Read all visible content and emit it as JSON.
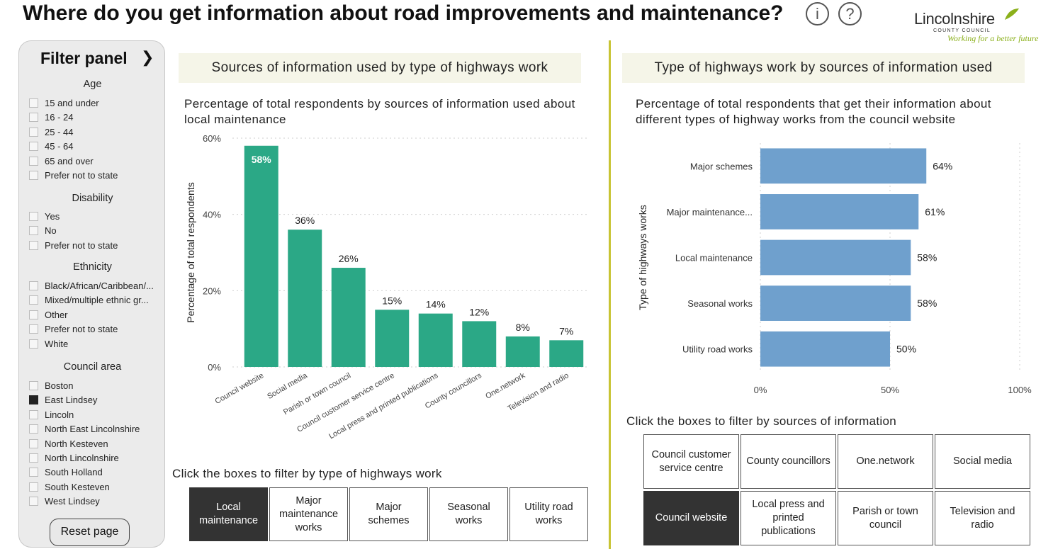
{
  "header": {
    "title": "Where do you get information about road improvements and maintenance?",
    "info_glyph": "i",
    "help_glyph": "?",
    "logo_name": "Lincolnshire",
    "logo_sub": "COUNTY COUNCIL",
    "logo_tagline": "Working for a better future"
  },
  "filter_panel": {
    "title": "Filter panel",
    "chevron": "❯",
    "groups": [
      {
        "heading": "Age",
        "options": [
          {
            "label": "15 and under",
            "checked": false
          },
          {
            "label": "16 - 24",
            "checked": false
          },
          {
            "label": "25 - 44",
            "checked": false
          },
          {
            "label": "45 - 64",
            "checked": false
          },
          {
            "label": "65 and over",
            "checked": false
          },
          {
            "label": "Prefer not to state",
            "checked": false
          }
        ]
      },
      {
        "heading": "Disability",
        "options": [
          {
            "label": "Yes",
            "checked": false
          },
          {
            "label": "No",
            "checked": false
          },
          {
            "label": "Prefer not to state",
            "checked": false
          }
        ]
      },
      {
        "heading": "Ethnicity",
        "options": [
          {
            "label": "Black/African/Caribbean/...",
            "checked": false
          },
          {
            "label": "Mixed/multiple ethnic gr...",
            "checked": false
          },
          {
            "label": "Other",
            "checked": false
          },
          {
            "label": "Prefer not to state",
            "checked": false
          },
          {
            "label": "White",
            "checked": false
          }
        ]
      },
      {
        "heading": "Council area",
        "options": [
          {
            "label": "Boston",
            "checked": false
          },
          {
            "label": "East Lindsey",
            "checked": true
          },
          {
            "label": "Lincoln",
            "checked": false
          },
          {
            "label": "North East Lincolnshire",
            "checked": false
          },
          {
            "label": "North Kesteven",
            "checked": false
          },
          {
            "label": "North Lincolnshire",
            "checked": false
          },
          {
            "label": "South Holland",
            "checked": false
          },
          {
            "label": "South Kesteven",
            "checked": false
          },
          {
            "label": "West Lindsey",
            "checked": false
          }
        ]
      }
    ],
    "reset_label": "Reset page"
  },
  "left_section": {
    "banner": "Sources of information used by type of highways work",
    "filter_caption": "Click the boxes to filter by type of highways work",
    "tiles": [
      {
        "label": "Local maintenance",
        "selected": true
      },
      {
        "label": "Major maintenance works",
        "selected": false
      },
      {
        "label": "Major schemes",
        "selected": false
      },
      {
        "label": "Seasonal works",
        "selected": false
      },
      {
        "label": "Utility road works",
        "selected": false
      }
    ]
  },
  "right_section": {
    "banner": "Type of highways work by sources of information used",
    "filter_caption": "Click the boxes to filter by sources of information",
    "tiles": [
      {
        "label": "Council customer service centre",
        "selected": false
      },
      {
        "label": "County councillors",
        "selected": false
      },
      {
        "label": "One.network",
        "selected": false
      },
      {
        "label": "Social media",
        "selected": false
      },
      {
        "label": "Council website",
        "selected": true
      },
      {
        "label": "Local press and printed publications",
        "selected": false
      },
      {
        "label": "Parish or town council",
        "selected": false
      },
      {
        "label": "Television and radio",
        "selected": false
      }
    ]
  },
  "chart_data": [
    {
      "type": "bar",
      "orientation": "vertical",
      "title": "Percentage of total respondents by sources of information used about local maintenance",
      "categories": [
        "Council website",
        "Social media",
        "Parish or town council",
        "Council customer service centre",
        "Local press and printed publications",
        "County councillors",
        "One.network",
        "Television and radio"
      ],
      "values": [
        58,
        36,
        26,
        15,
        14,
        12,
        8,
        7
      ],
      "data_labels": [
        "58%",
        "36%",
        "26%",
        "15%",
        "14%",
        "12%",
        "8%",
        "7%"
      ],
      "ylabel": "Percentage of total respondents",
      "xlabel": "",
      "ylim": [
        0,
        60
      ],
      "yticks": [
        0,
        20,
        40,
        60
      ],
      "ytick_labels": [
        "0%",
        "20%",
        "40%",
        "60%"
      ],
      "grid": true,
      "color": "#2ba886"
    },
    {
      "type": "bar",
      "orientation": "horizontal",
      "title": "Percentage of total respondents that get their information about different types of highway works from the council website",
      "categories": [
        "Major schemes",
        "Major maintenance...",
        "Local maintenance",
        "Seasonal works",
        "Utility road works"
      ],
      "values": [
        64,
        61,
        58,
        58,
        50
      ],
      "data_labels": [
        "64%",
        "61%",
        "58%",
        "58%",
        "50%"
      ],
      "ylabel": "Type of highways works",
      "xlabel": "",
      "xlim": [
        0,
        100
      ],
      "xticks": [
        0,
        50,
        100
      ],
      "xtick_labels": [
        "0%",
        "50%",
        "100%"
      ],
      "grid": true,
      "color": "#6fa0cd"
    }
  ]
}
